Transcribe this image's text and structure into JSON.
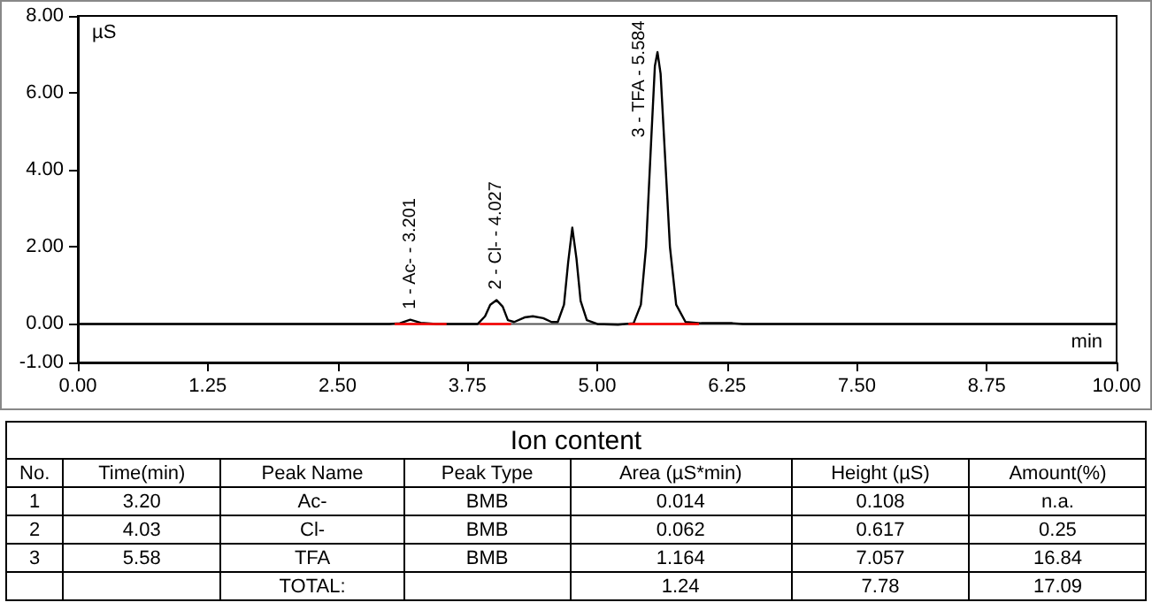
{
  "chart_data": [
    {
      "type": "line",
      "xlabel": "min",
      "ylabel": "µS",
      "xlim": [
        0,
        10
      ],
      "ylim": [
        -1,
        8
      ],
      "xticks": [
        {
          "value": 0,
          "label": "0.00"
        },
        {
          "value": 1.25,
          "label": "1.25"
        },
        {
          "value": 2.5,
          "label": "2.50"
        },
        {
          "value": 3.75,
          "label": "3.75"
        },
        {
          "value": 5,
          "label": "5.00"
        },
        {
          "value": 6.25,
          "label": "6.25"
        },
        {
          "value": 7.5,
          "label": "7.50"
        },
        {
          "value": 8.75,
          "label": "8.75"
        },
        {
          "value": 10,
          "label": "10.00"
        }
      ],
      "yticks": [
        {
          "value": -1,
          "label": "-1.00"
        },
        {
          "value": 0,
          "label": "0.00"
        },
        {
          "value": 2,
          "label": "2.00"
        },
        {
          "value": 4,
          "label": "4.00"
        },
        {
          "value": 6,
          "label": "6.00"
        },
        {
          "value": 8,
          "label": "8.00"
        }
      ],
      "grid": false,
      "marker": "none",
      "ref_lines": [
        {
          "axis": "y",
          "value": 0,
          "color": "#555555"
        }
      ],
      "series": [
        {
          "color": "#000000",
          "x": [
            0,
            3.0,
            3.1,
            3.2,
            3.3,
            3.45,
            3.85,
            3.92,
            3.97,
            4.03,
            4.09,
            4.14,
            4.2,
            4.3,
            4.38,
            4.48,
            4.56,
            4.62,
            4.68,
            4.72,
            4.76,
            4.8,
            4.84,
            4.9,
            5.0,
            5.2,
            5.35,
            5.42,
            5.47,
            5.52,
            5.555,
            5.58,
            5.61,
            5.65,
            5.7,
            5.76,
            5.85,
            6.0,
            6.3,
            6.4,
            10
          ],
          "values": [
            0,
            0,
            0.02,
            0.11,
            0.03,
            0,
            0,
            0.2,
            0.5,
            0.62,
            0.45,
            0.1,
            0.05,
            0.17,
            0.2,
            0.15,
            0.05,
            0.05,
            0.5,
            1.6,
            2.5,
            1.7,
            0.6,
            0.1,
            0,
            -0.02,
            0.02,
            0.5,
            2.0,
            4.8,
            6.7,
            7.06,
            6.5,
            4.5,
            2.0,
            0.5,
            0.05,
            0.02,
            0.02,
            0,
            0
          ]
        },
        {
          "color": "#ff0000",
          "x": [
            3.05,
            3.55
          ],
          "values": [
            0,
            0
          ]
        },
        {
          "color": "#ff0000",
          "x": [
            3.87,
            4.17
          ],
          "values": [
            0,
            0
          ]
        },
        {
          "color": "#ff0000",
          "x": [
            5.3,
            5.98
          ],
          "values": [
            0,
            0
          ]
        }
      ],
      "annotations": [
        {
          "text": "1 - Ac- - 3.201",
          "x": 3.2,
          "y": 0.11
        },
        {
          "text": "2 - Cl- - 4.027",
          "x": 4.03,
          "y": 0.62
        },
        {
          "text": "3 - TFA - 5.584",
          "x": 5.58,
          "y": 7.06
        }
      ]
    },
    {
      "type": "other",
      "title": "Ion content",
      "categories": [
        "No.",
        "Time(min)",
        "Peak Name",
        "Peak Type",
        "Area (µS*min)",
        "Height (µS)",
        "Amount(%)"
      ],
      "cell_labels": [
        [
          "1",
          "3.20",
          "Ac-",
          "BMB",
          "0.014",
          "0.108",
          "n.a."
        ],
        [
          "2",
          "4.03",
          "Cl-",
          "BMB",
          "0.062",
          "0.617",
          "0.25"
        ],
        [
          "3",
          "5.58",
          "TFA",
          "BMB",
          "1.164",
          "7.057",
          "16.84"
        ],
        [
          null,
          null,
          "TOTAL:",
          null,
          "1.24",
          "7.78",
          "17.09"
        ]
      ]
    }
  ]
}
